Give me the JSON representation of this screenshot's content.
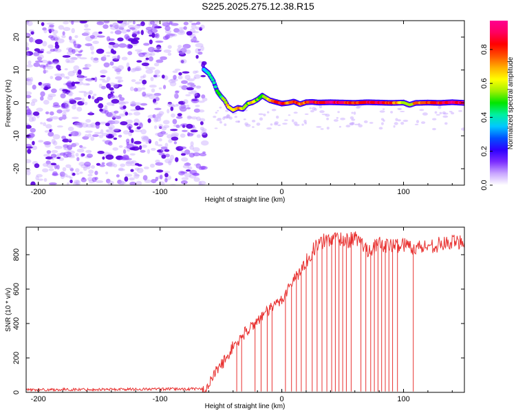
{
  "figure": {
    "title": "S225.2025.275.12.38.R15"
  },
  "colors": {
    "noise": "#6a00e8",
    "snr_line": "#e8302f",
    "axis": "#000000",
    "colormap": [
      "#ffffff",
      "#c9a6ff",
      "#7b2cff",
      "#2f00ff",
      "#0050ff",
      "#00c8ff",
      "#00f0a0",
      "#00e600",
      "#a0f000",
      "#ffff00",
      "#ffb000",
      "#ff5000",
      "#ff0000",
      "#ff0060",
      "#ff0090"
    ]
  },
  "chart_data": [
    {
      "type": "heatmap",
      "title": "",
      "xlabel": "Height of straight line (km)",
      "ylabel": "Frequency (Hz)",
      "xlim": [
        -210,
        150
      ],
      "ylim": [
        -25,
        25
      ],
      "xticks": [
        -200,
        -100,
        0,
        100
      ],
      "yticks": [
        20,
        10,
        0,
        -10,
        -20
      ],
      "colorbar": {
        "label": "Normalized spectral amplitude",
        "range": [
          0,
          0.97
        ],
        "ticks": [
          0.0,
          0.2,
          0.4,
          0.6,
          0.8
        ]
      },
      "noise_region": {
        "x_from": -210,
        "x_to": -63,
        "freq_from": -25,
        "freq_to": 25
      },
      "signal_ridge": {
        "x": [
          -64,
          -60,
          -56,
          -53,
          -50,
          -47,
          -44,
          -40,
          -36,
          -32,
          -28,
          -24,
          -20,
          -16,
          -13,
          -10,
          -6,
          -2,
          0,
          5,
          10,
          15,
          20,
          25,
          30,
          40,
          50,
          60,
          70,
          80,
          90,
          100,
          105,
          110,
          120,
          130,
          140,
          150
        ],
        "freq": [
          10.2,
          9.0,
          6.5,
          3.5,
          2.0,
          0.8,
          -1.2,
          -2.2,
          -1.5,
          -1.8,
          -0.2,
          0.2,
          1.0,
          2.2,
          1.5,
          0.8,
          0.4,
          0.0,
          -0.2,
          0.0,
          0.4,
          -0.4,
          0.2,
          0.3,
          0.1,
          0.2,
          0.1,
          0.0,
          0.2,
          0.1,
          0.0,
          0.1,
          -0.6,
          0.0,
          0.1,
          0.0,
          0.2,
          0.0
        ],
        "amplitude": [
          0.35,
          0.4,
          0.45,
          0.5,
          0.45,
          0.55,
          0.7,
          0.6,
          0.75,
          0.6,
          0.55,
          0.7,
          0.55,
          0.5,
          0.6,
          0.7,
          0.8,
          0.85,
          0.9,
          0.7,
          0.85,
          0.75,
          0.8,
          0.9,
          0.85,
          0.95,
          0.9,
          0.8,
          0.85,
          0.9,
          0.8,
          0.6,
          0.55,
          0.75,
          0.8,
          0.85,
          0.95,
          0.9
        ]
      }
    },
    {
      "type": "line",
      "title": "",
      "xlabel": "Height of straight line (km)",
      "ylabel": "SNR (10 * v/v)",
      "xlim": [
        -210,
        150
      ],
      "ylim": [
        0,
        960
      ],
      "xticks": [
        -200,
        -100,
        0,
        100
      ],
      "yticks": [
        0,
        200,
        400,
        600,
        800
      ],
      "series": [
        {
          "name": "SNR",
          "x": [
            -210,
            -65,
            -60,
            -55,
            -50,
            -45,
            -40,
            -35,
            -30,
            -25,
            -20,
            -15,
            -10,
            -5,
            0,
            5,
            10,
            15,
            20,
            25,
            30,
            35,
            40,
            45,
            50,
            55,
            60,
            65,
            70,
            75,
            80,
            90,
            100,
            110,
            120,
            130,
            140,
            150
          ],
          "values": [
            15,
            20,
            40,
            110,
            160,
            200,
            270,
            300,
            350,
            380,
            420,
            450,
            480,
            510,
            540,
            600,
            660,
            700,
            760,
            820,
            860,
            880,
            890,
            900,
            890,
            880,
            900,
            870,
            830,
            840,
            860,
            850,
            860,
            840,
            850,
            860,
            870,
            880
          ],
          "dropouts_x": [
            -37,
            -33,
            -22,
            -17,
            -12,
            -8,
            3,
            8,
            12,
            16,
            20,
            25,
            29,
            33,
            37,
            41,
            44,
            47,
            50,
            53,
            57,
            65,
            69,
            73,
            76,
            79,
            82,
            85,
            88,
            91,
            95,
            108
          ]
        }
      ]
    }
  ]
}
